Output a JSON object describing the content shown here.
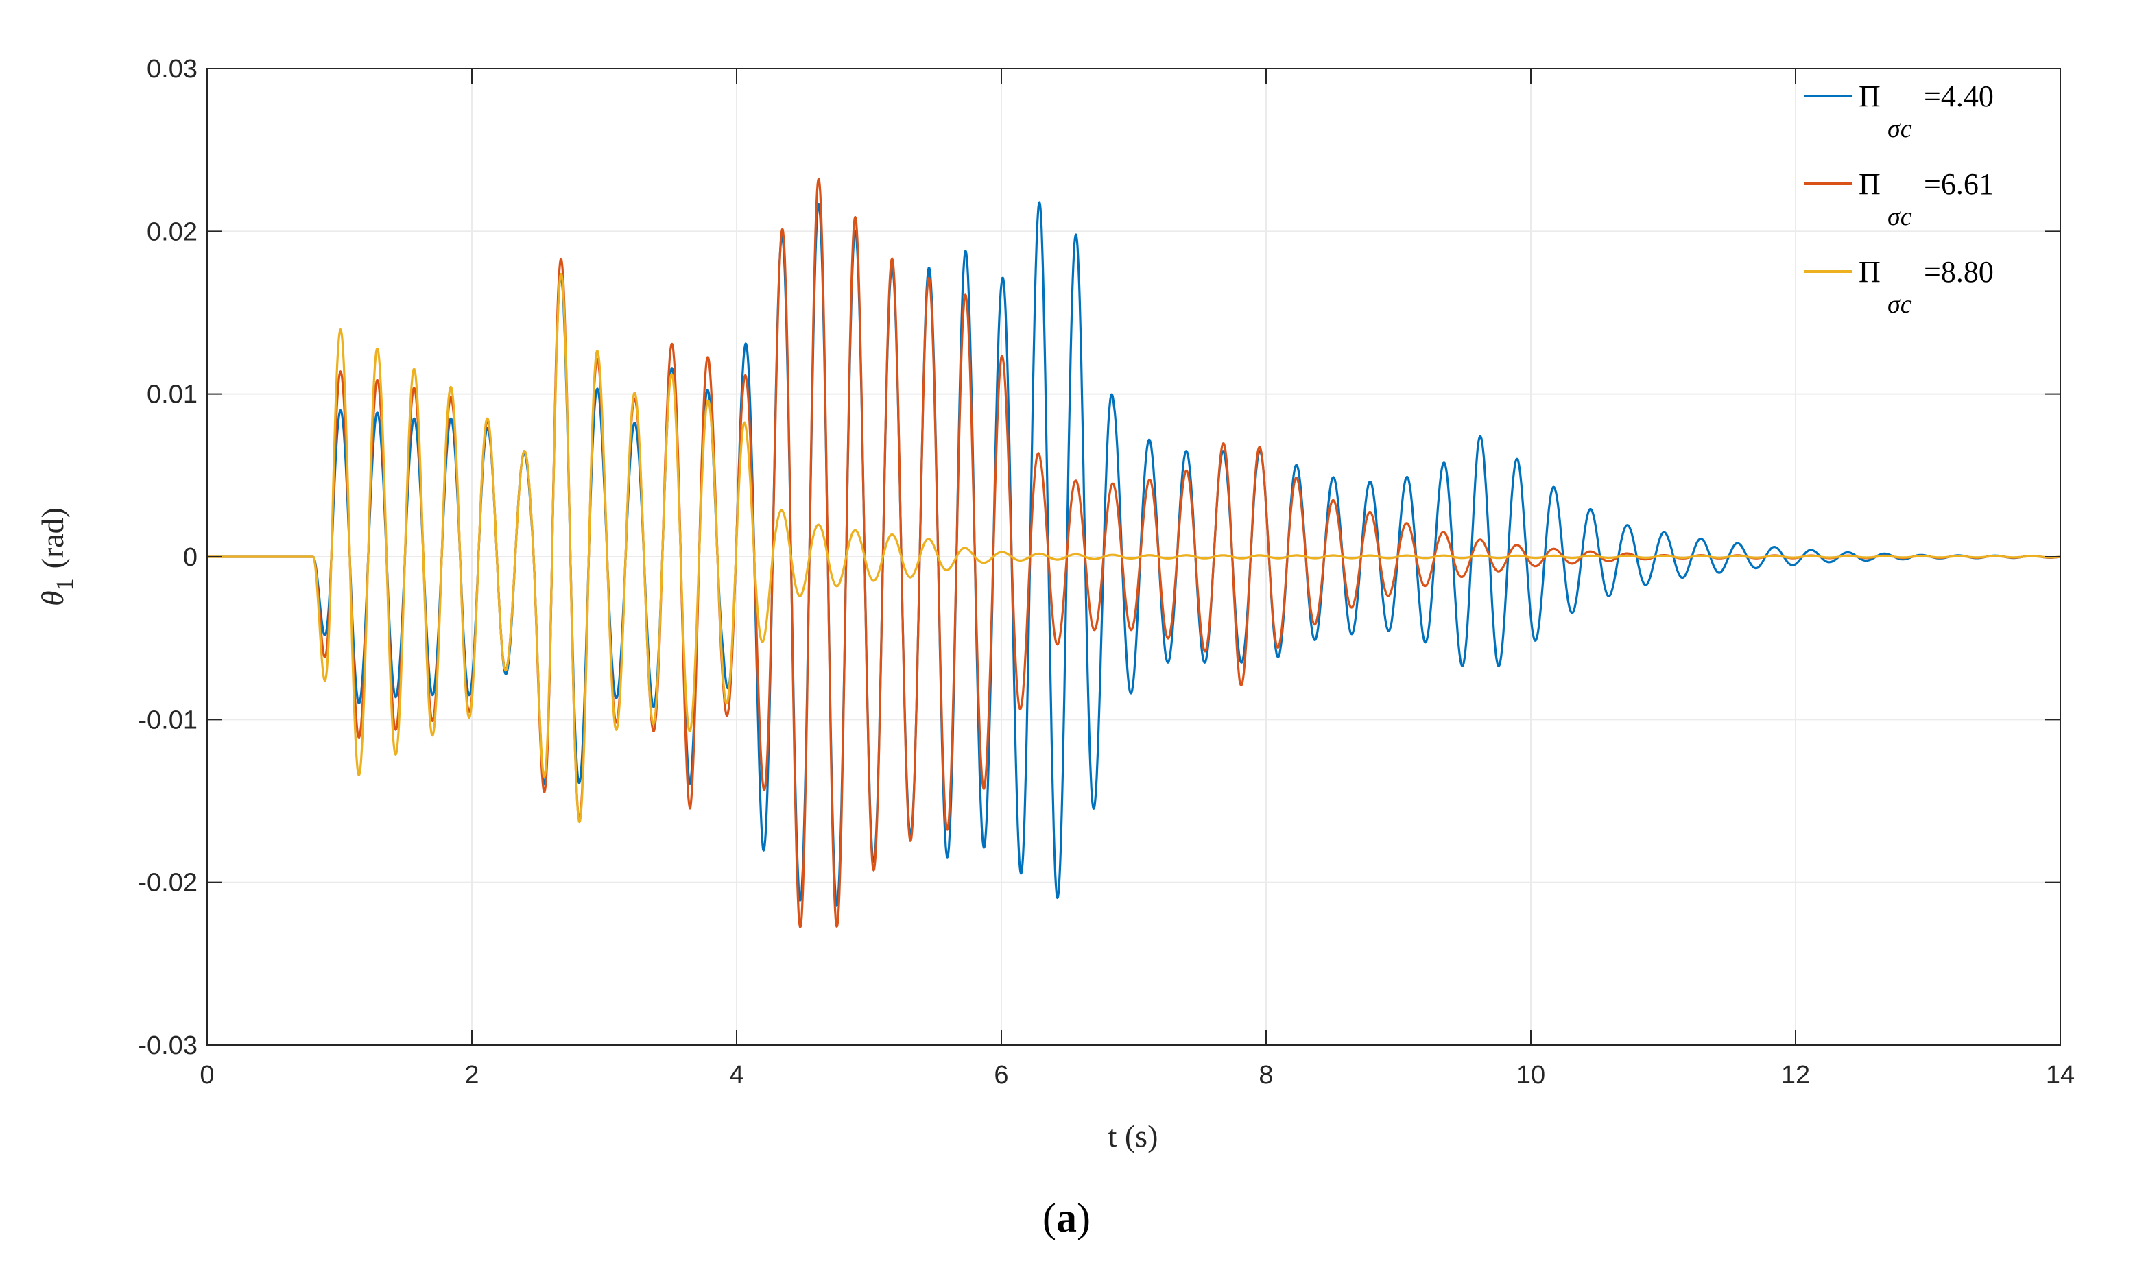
{
  "chart_data": {
    "type": "line",
    "xlabel": "t (s)",
    "ylabel_symbol": "θ",
    "ylabel_subscript": "1",
    "ylabel_unit": "(rad)",
    "xlim": [
      0,
      14
    ],
    "ylim": [
      -0.03,
      0.03
    ],
    "x_ticks": [
      0,
      2,
      4,
      6,
      8,
      10,
      12,
      14
    ],
    "x_tick_labels": [
      "0",
      "2",
      "4",
      "6",
      "8",
      "10",
      "12",
      "14"
    ],
    "y_ticks": [
      -0.03,
      -0.02,
      -0.01,
      0,
      0.01,
      0.02,
      0.03
    ],
    "y_tick_labels": [
      "-0.03",
      "-0.02",
      "-0.01",
      "0",
      "0.01",
      "0.02",
      "0.03"
    ],
    "grid": true,
    "legend_position": "top-right",
    "caption_open": "(",
    "caption_letter": "a",
    "caption_close": ")",
    "series": [
      {
        "name": "Π",
        "subscript": "σc",
        "value_label": "=4.40",
        "color": "#0072BD",
        "frequency_hz": 3.6,
        "envelope": [
          [
            0.8,
            0
          ],
          [
            0.95,
            0.009
          ],
          [
            1.2,
            0.009
          ],
          [
            1.5,
            0.0085
          ],
          [
            2.0,
            0.0085
          ],
          [
            2.3,
            0.007
          ],
          [
            2.45,
            0.006
          ],
          [
            2.6,
            0.019
          ],
          [
            2.85,
            0.013
          ],
          [
            3.0,
            0.009
          ],
          [
            3.3,
            0.008
          ],
          [
            3.65,
            0.014
          ],
          [
            3.9,
            0.007
          ],
          [
            4.2,
            0.018
          ],
          [
            4.45,
            0.021
          ],
          [
            4.7,
            0.022
          ],
          [
            5.0,
            0.019
          ],
          [
            5.3,
            0.017
          ],
          [
            5.7,
            0.019
          ],
          [
            6.0,
            0.017
          ],
          [
            6.3,
            0.022
          ],
          [
            6.6,
            0.0195
          ],
          [
            6.85,
            0.0095
          ],
          [
            7.2,
            0.0065
          ],
          [
            7.6,
            0.0065
          ],
          [
            8.0,
            0.0065
          ],
          [
            8.4,
            0.005
          ],
          [
            8.9,
            0.0045
          ],
          [
            9.3,
            0.0055
          ],
          [
            9.6,
            0.0075
          ],
          [
            9.9,
            0.006
          ],
          [
            10.3,
            0.0035
          ],
          [
            10.7,
            0.002
          ],
          [
            11.2,
            0.0012
          ],
          [
            11.7,
            0.0007
          ],
          [
            12.3,
            0.0003
          ],
          [
            13.0,
            0.0001
          ],
          [
            14.0,
            5e-05
          ]
        ]
      },
      {
        "name": "Π",
        "subscript": "σc",
        "value_label": "=6.61",
        "color": "#D95319",
        "frequency_hz": 3.6,
        "envelope": [
          [
            0.8,
            0
          ],
          [
            0.95,
            0.0115
          ],
          [
            1.2,
            0.011
          ],
          [
            1.5,
            0.0105
          ],
          [
            2.0,
            0.0095
          ],
          [
            2.3,
            0.0065
          ],
          [
            2.45,
            0.0065
          ],
          [
            2.6,
            0.0195
          ],
          [
            2.85,
            0.0155
          ],
          [
            3.0,
            0.0105
          ],
          [
            3.3,
            0.0095
          ],
          [
            3.65,
            0.0155
          ],
          [
            3.9,
            0.0095
          ],
          [
            4.15,
            0.012
          ],
          [
            4.4,
            0.0225
          ],
          [
            4.7,
            0.0235
          ],
          [
            5.0,
            0.0195
          ],
          [
            5.3,
            0.0175
          ],
          [
            5.7,
            0.0165
          ],
          [
            6.0,
            0.0125
          ],
          [
            6.3,
            0.006
          ],
          [
            6.6,
            0.0045
          ],
          [
            7.0,
            0.0045
          ],
          [
            7.5,
            0.0055
          ],
          [
            7.8,
            0.008
          ],
          [
            8.1,
            0.0055
          ],
          [
            8.5,
            0.0035
          ],
          [
            9.0,
            0.0022
          ],
          [
            9.5,
            0.0012
          ],
          [
            10.0,
            0.0006
          ],
          [
            10.5,
            0.0003
          ],
          [
            11.0,
            0.0001
          ],
          [
            14.0,
            5e-05
          ]
        ]
      },
      {
        "name": "Π",
        "subscript": "σc",
        "value_label": "=8.80",
        "color": "#EDB120",
        "frequency_hz": 3.6,
        "envelope": [
          [
            0.8,
            0
          ],
          [
            0.95,
            0.0142
          ],
          [
            1.2,
            0.0132
          ],
          [
            1.5,
            0.0118
          ],
          [
            2.0,
            0.0098
          ],
          [
            2.3,
            0.0065
          ],
          [
            2.45,
            0.0065
          ],
          [
            2.6,
            0.018
          ],
          [
            2.85,
            0.016
          ],
          [
            3.0,
            0.011
          ],
          [
            3.3,
            0.0098
          ],
          [
            3.55,
            0.0115
          ],
          [
            3.8,
            0.0095
          ],
          [
            4.05,
            0.0085
          ],
          [
            4.3,
            0.003
          ],
          [
            4.6,
            0.002
          ],
          [
            5.0,
            0.0015
          ],
          [
            5.4,
            0.0012
          ],
          [
            5.8,
            0.0004
          ],
          [
            6.2,
            0.0002
          ],
          [
            7.0,
            0.0001
          ],
          [
            14.0,
            3e-05
          ]
        ]
      }
    ]
  }
}
